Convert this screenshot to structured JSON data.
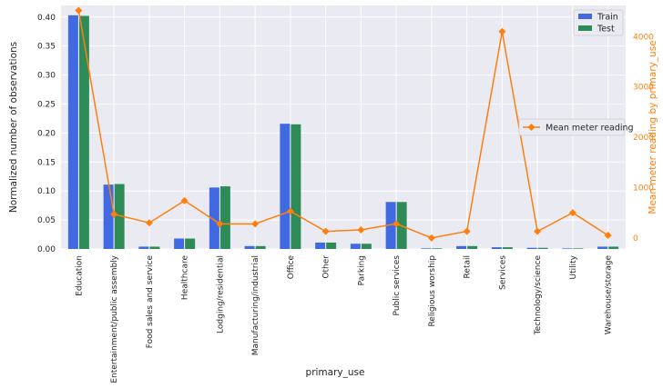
{
  "chart_data": {
    "type": "bar",
    "xlabel": "primary_use",
    "ylabel": "Normalized number of observations",
    "ylabel_right": "Mean meter reading by primary_use",
    "ylim": [
      0,
      0.42
    ],
    "ylim_right": [
      -220,
      4620
    ],
    "yticks": [
      "0.00",
      "0.05",
      "0.10",
      "0.15",
      "0.20",
      "0.25",
      "0.30",
      "0.35",
      "0.40"
    ],
    "yticks_right": [
      "0",
      "1000",
      "2000",
      "3000",
      "4000"
    ],
    "grid": true,
    "categories": [
      "Education",
      "Entertainment/public assembly",
      "Food sales and service",
      "Healthcare",
      "Lodging/residential",
      "Manufacturing/industrial",
      "Office",
      "Other",
      "Parking",
      "Public services",
      "Religious worship",
      "Retail",
      "Services",
      "Technology/science",
      "Utility",
      "Warehouse/storage"
    ],
    "series": [
      {
        "name": "Train",
        "kind": "bar",
        "axis": "left",
        "color": "#4169e1",
        "values": [
          0.403,
          0.111,
          0.004,
          0.018,
          0.106,
          0.005,
          0.216,
          0.011,
          0.009,
          0.081,
          0.001,
          0.005,
          0.003,
          0.002,
          0.001,
          0.004
        ]
      },
      {
        "name": "Test",
        "kind": "bar",
        "axis": "left",
        "color": "#2e8b57",
        "values": [
          0.402,
          0.112,
          0.004,
          0.018,
          0.108,
          0.005,
          0.215,
          0.011,
          0.009,
          0.081,
          0.001,
          0.005,
          0.003,
          0.002,
          0.001,
          0.004
        ]
      },
      {
        "name": "Mean meter reading",
        "kind": "line",
        "axis": "right",
        "color": "#ff7f0e",
        "values": [
          4520,
          470,
          300,
          740,
          280,
          280,
          530,
          130,
          160,
          280,
          0,
          130,
          4100,
          130,
          500,
          50
        ]
      }
    ],
    "legend_bars": "top-right",
    "legend_line": "center-right"
  }
}
